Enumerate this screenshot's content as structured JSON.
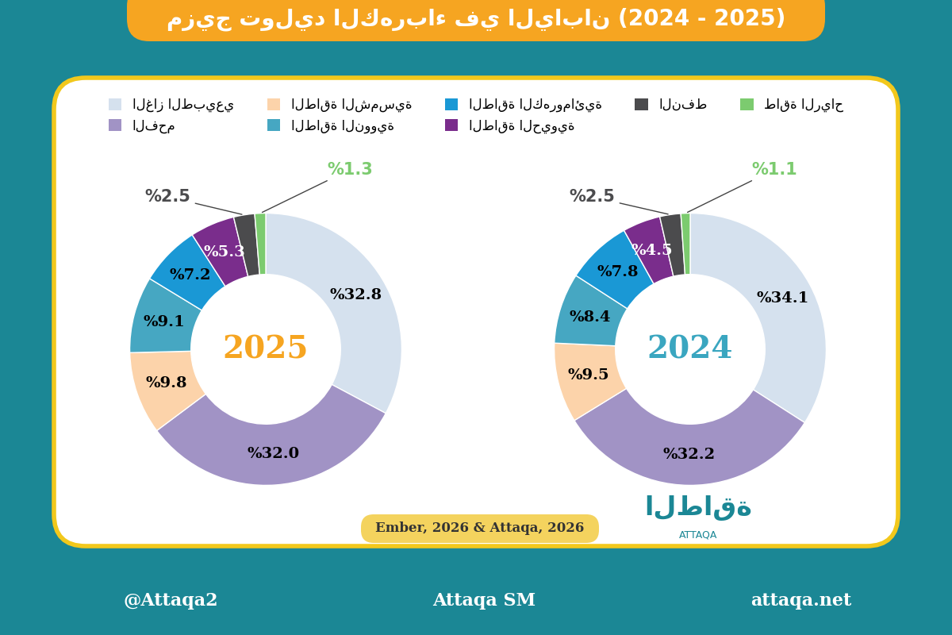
{
  "title": "مزيج توليد الكهرباء في اليابان (2024 - 2025)",
  "source": "Ember, 2026 & Attaqa, 2026",
  "logo": {
    "arabic": "الطاقة",
    "latin": "ATTAQA"
  },
  "footer": {
    "social": "@Attaqa2",
    "youtube": "Attaqa SM",
    "website": "attaqa.net"
  },
  "chart_data": [
    {
      "type": "pie",
      "title": "2025",
      "legend": "upper center",
      "data_labels": true,
      "categories": [
        "الغاز الطبيعي",
        "الفحم",
        "الطاقة الشمسية",
        "الطاقة النووية",
        "الطاقة الكهرومائية",
        "الطاقة الحيوية",
        "النفط",
        "طاقة الرياح"
      ],
      "values": [
        32.8,
        32.0,
        9.8,
        9.1,
        7.2,
        5.3,
        2.5,
        1.3
      ],
      "value_labels": [
        "%32.8",
        "%32.0",
        "%9.8",
        "%9.1",
        "%7.2",
        "%5.3",
        "%2.5",
        "%1.3"
      ],
      "colors": [
        "#d5e1ee",
        "#a193c5",
        "#fcd3aa",
        "#46a7c2",
        "#1a98d5",
        "#7a2d8c",
        "#4b4b4d",
        "#7ccb6f"
      ]
    },
    {
      "type": "pie",
      "title": "2024",
      "legend": "upper center",
      "data_labels": true,
      "categories": [
        "الغاز الطبيعي",
        "الفحم",
        "الطاقة الشمسية",
        "الطاقة النووية",
        "الطاقة الكهرومائية",
        "الطاقة الحيوية",
        "النفط",
        "طاقة الرياح"
      ],
      "values": [
        34.1,
        32.2,
        9.5,
        8.4,
        7.8,
        4.5,
        2.5,
        1.1
      ],
      "value_labels": [
        "%34.1",
        "%32.2",
        "%9.5",
        "%8.4",
        "%7.8",
        "%4.5",
        "%2.5",
        "%1.1"
      ],
      "colors": [
        "#d5e1ee",
        "#a193c5",
        "#fcd3aa",
        "#46a7c2",
        "#1a98d5",
        "#7a2d8c",
        "#4b4b4d",
        "#7ccb6f"
      ]
    }
  ]
}
